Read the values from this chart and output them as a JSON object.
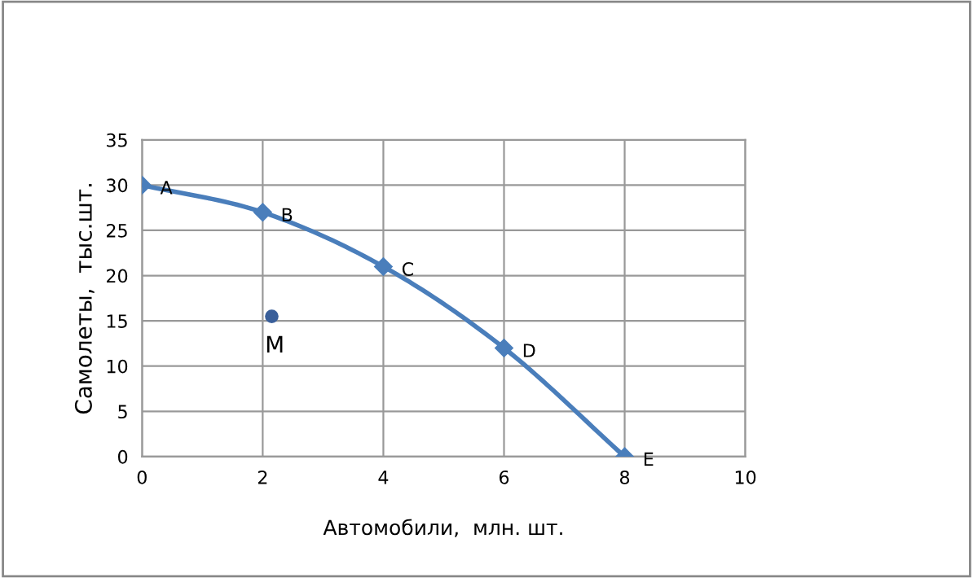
{
  "chart_data": {
    "type": "line",
    "xlabel": "Автомобили,  млн. шт.",
    "ylabel": "Самолеты,  тыс.шт.",
    "x": [
      0,
      2,
      4,
      6,
      8
    ],
    "series": [
      {
        "color": "#4a7ebb",
        "values": [
          30,
          27,
          21,
          12,
          0
        ],
        "marker": "diamond"
      },
      {
        "type": "scatter",
        "color": "#3a5f9a",
        "x": [
          2.15
        ],
        "values": [
          15.5
        ],
        "marker": "circle"
      }
    ],
    "annotations": [
      {
        "text": "A",
        "x": 0,
        "y": 30
      },
      {
        "text": "B",
        "x": 2,
        "y": 27
      },
      {
        "text": "C",
        "x": 4,
        "y": 21
      },
      {
        "text": "D",
        "x": 6,
        "y": 12
      },
      {
        "text": "E",
        "x": 8,
        "y": 0
      },
      {
        "text": "M",
        "x": 2.15,
        "y": 15.5
      }
    ],
    "xlim": [
      0,
      10
    ],
    "xticks": [
      0,
      2,
      4,
      6,
      8,
      10
    ],
    "ylim": [
      0,
      35
    ],
    "yticks": [
      0,
      5,
      10,
      15,
      20,
      25,
      30,
      35
    ],
    "grid": true,
    "legend": false
  }
}
